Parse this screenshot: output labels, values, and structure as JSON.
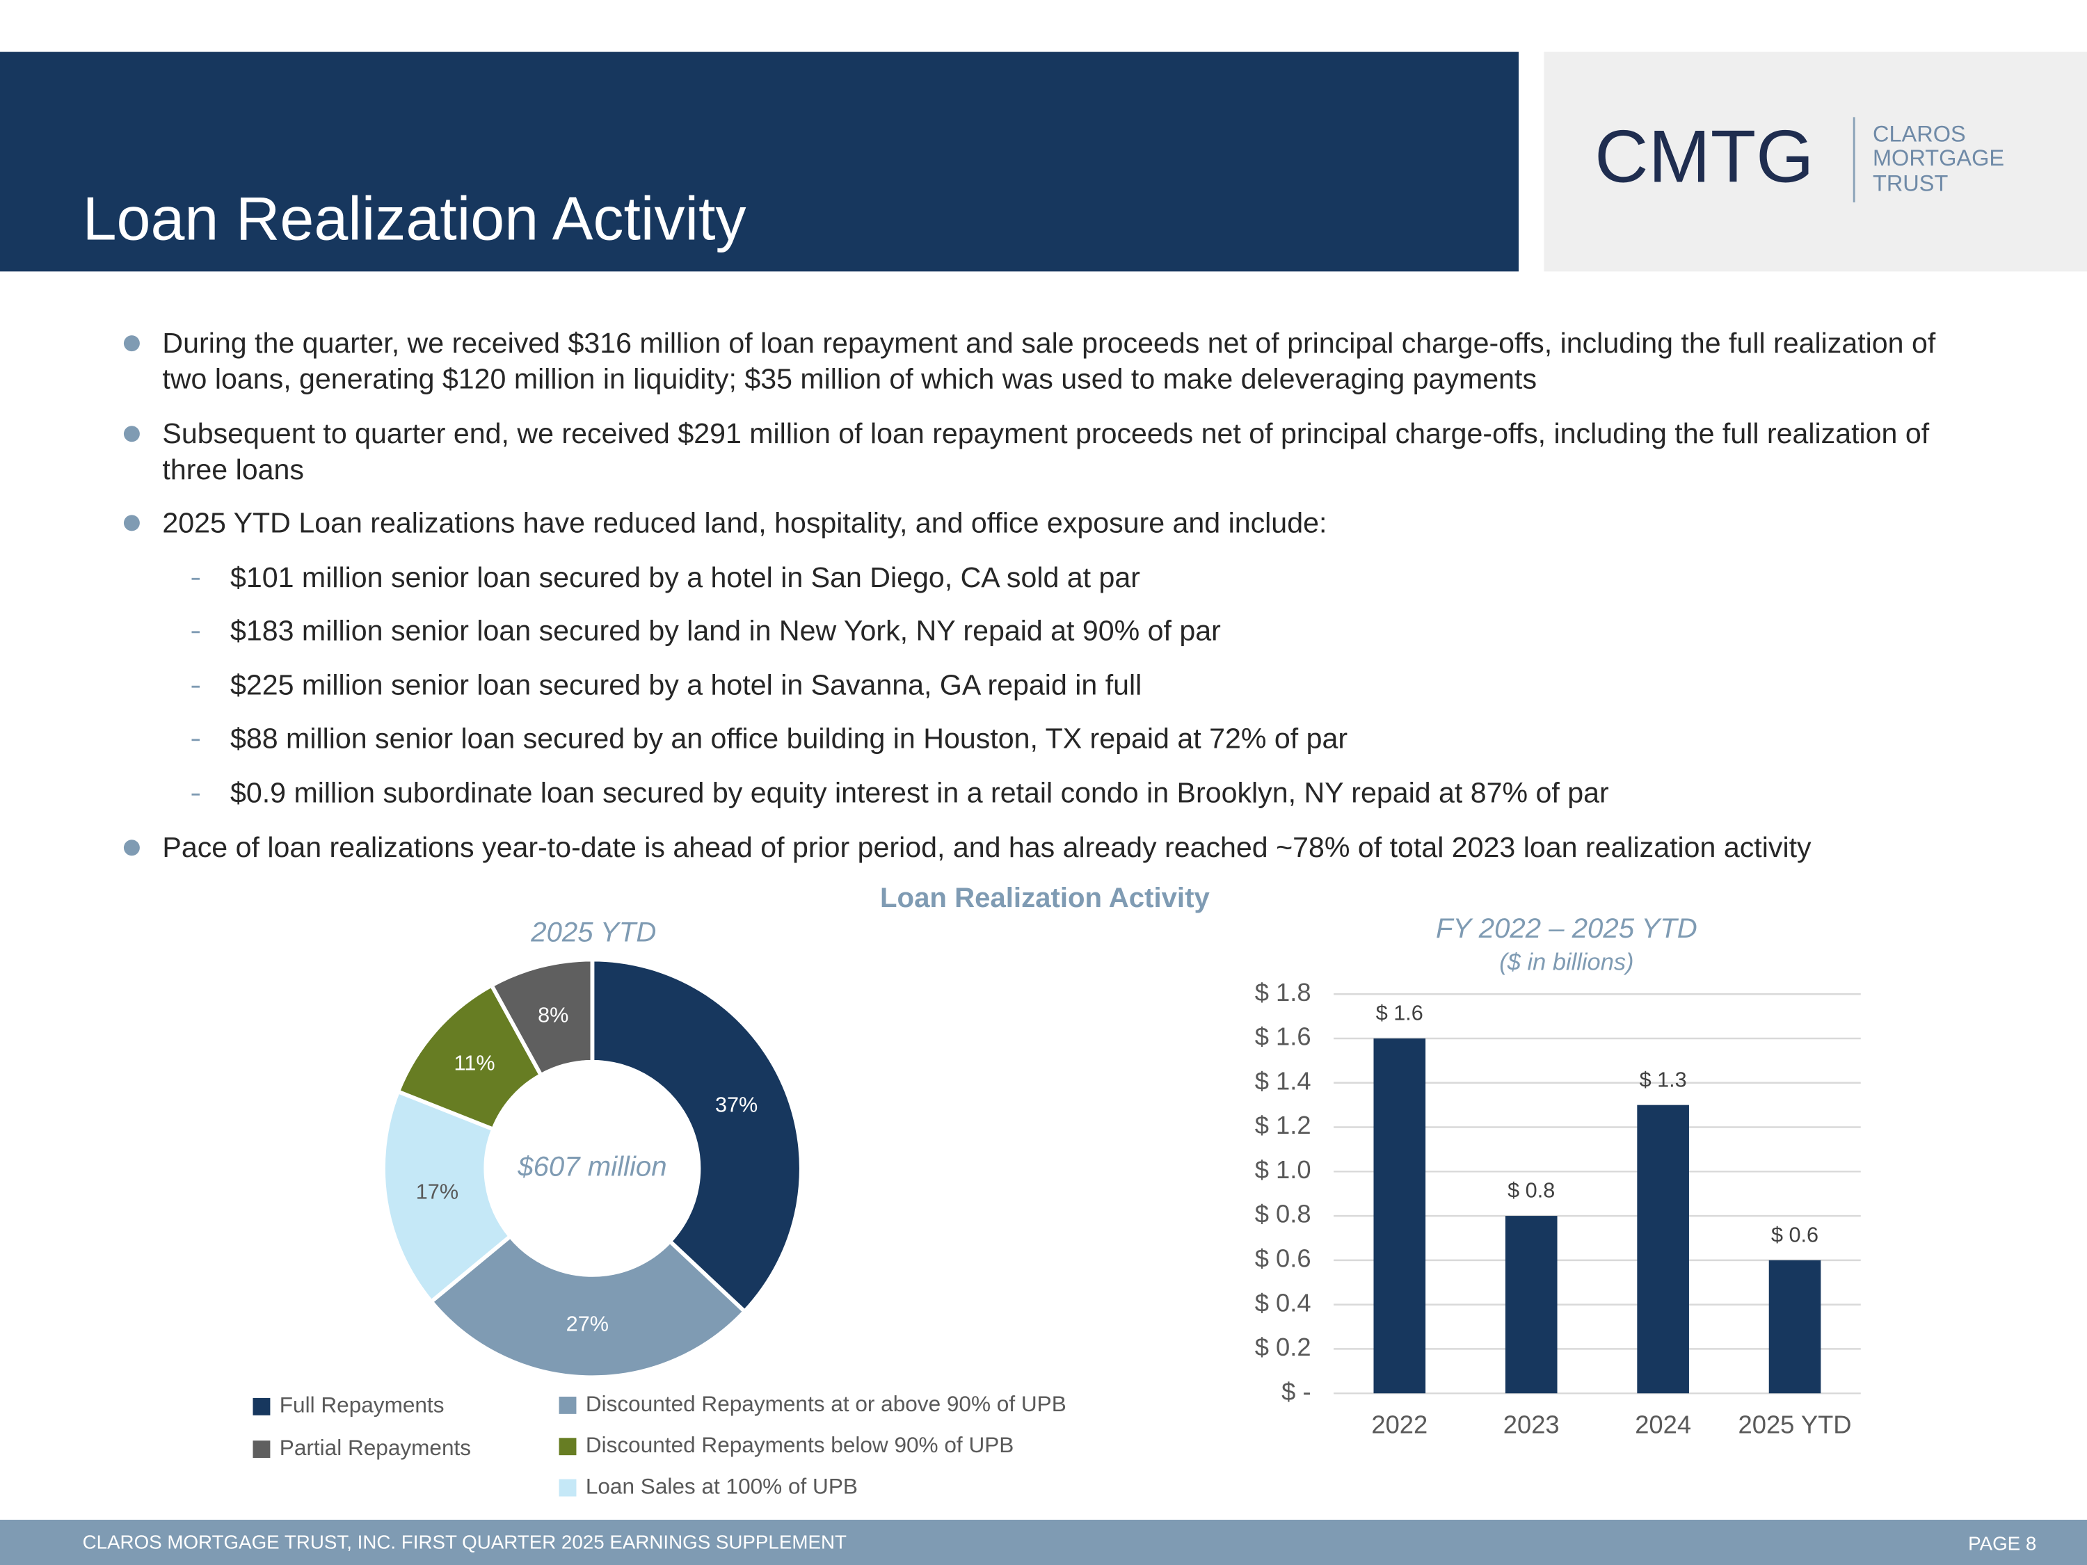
{
  "header": {
    "title": "Loan Realization Activity",
    "logo": {
      "mark": "CMTG",
      "lines": [
        "CLAROS",
        "MORTGAGE",
        "TRUST"
      ]
    }
  },
  "bullets": [
    {
      "text": "During the quarter, we received $316 million of loan repayment and sale proceeds net of principal charge-offs, including the full realization of two loans, generating $120 million in liquidity; $35 million of which was used to make deleveraging payments"
    },
    {
      "text": "Subsequent to quarter end, we received $291 million of loan repayment proceeds net of principal charge-offs, including the full realization of three loans"
    },
    {
      "text": "2025 YTD Loan realizations have reduced land, hospitality, and office exposure and include:",
      "items": [
        "$101 million senior loan secured by a hotel in San Diego, CA sold at par",
        "$183 million senior loan secured by land in New York, NY repaid at 90% of par",
        "$225 million senior loan secured by a hotel in Savanna, GA repaid in full",
        "$88 million senior loan secured by an office building in Houston, TX repaid at 72% of par",
        "$0.9 million subordinate loan secured by equity interest in a retail condo in Brooklyn, NY repaid at 87% of par"
      ]
    },
    {
      "text": "Pace of loan realizations year-to-date is ahead of prior period, and has already reached ~78% of total 2023 loan realization activity"
    }
  ],
  "section_title": "Loan Realization Activity",
  "chart_data": [
    {
      "type": "donut",
      "title": "2025 YTD",
      "center_label": "$607 million",
      "categories": [
        "Full Repayments",
        "Discounted Repayments at or above 90% of UPB",
        "Loan Sales at 100% of UPB",
        "Discounted Repayments below 90% of UPB",
        "Partial Repayments"
      ],
      "values": [
        37,
        27,
        17,
        11,
        8
      ],
      "value_labels": [
        "37%",
        "27%",
        "17%",
        "11%",
        "8%"
      ],
      "colors": [
        "#17375e",
        "#7f9bb3",
        "#c5e8f7",
        "#677d23",
        "#5f5f5f"
      ]
    },
    {
      "type": "bar",
      "title": "FY 2022 – 2025 YTD",
      "subtitle": "($ in billions)",
      "categories": [
        "2022",
        "2023",
        "2024",
        "2025 YTD"
      ],
      "values": [
        1.6,
        0.8,
        1.3,
        0.6
      ],
      "value_labels": [
        "$ 1.6",
        "$ 0.8",
        "$ 1.3",
        "$ 0.6"
      ],
      "color": "#17375e",
      "ylim": [
        0,
        1.8
      ],
      "yticks": [
        {
          "value": 0,
          "label": "$ -"
        },
        {
          "value": 0.2,
          "label": "$ 0.2"
        },
        {
          "value": 0.4,
          "label": "$ 0.4"
        },
        {
          "value": 0.6,
          "label": "$ 0.6"
        },
        {
          "value": 0.8,
          "label": "$ 0.8"
        },
        {
          "value": 1.0,
          "label": "$ 1.0"
        },
        {
          "value": 1.2,
          "label": "$ 1.2"
        },
        {
          "value": 1.4,
          "label": "$ 1.4"
        },
        {
          "value": 1.6,
          "label": "$ 1.6"
        },
        {
          "value": 1.8,
          "label": "$ 1.8"
        }
      ],
      "grid": true
    }
  ],
  "footer": {
    "left": "CLAROS MORTGAGE TRUST, INC. FIRST QUARTER 2025 EARNINGS SUPPLEMENT",
    "right": "PAGE 8"
  }
}
